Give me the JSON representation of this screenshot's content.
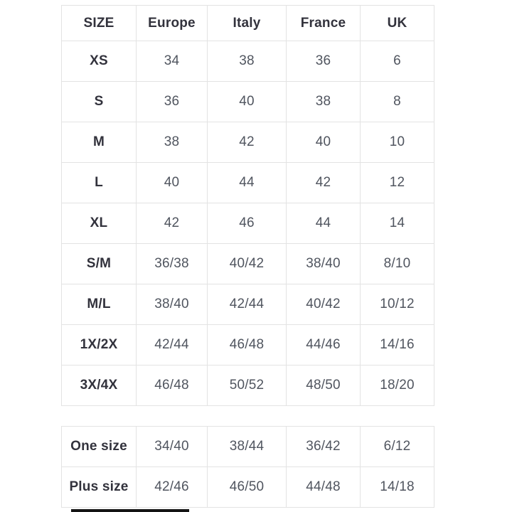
{
  "colors": {
    "background": "#ffffff",
    "border": "#e3e3e3",
    "label_text": "#32323c",
    "value_text": "#50555f",
    "bottom_bar": "#141414"
  },
  "size_chart": {
    "columns": [
      "SIZE",
      "Europe",
      "Italy",
      "France",
      "UK"
    ],
    "rows": [
      {
        "size": "XS",
        "values": [
          "34",
          "38",
          "36",
          "6"
        ]
      },
      {
        "size": "S",
        "values": [
          "36",
          "40",
          "38",
          "8"
        ]
      },
      {
        "size": "M",
        "values": [
          "38",
          "42",
          "40",
          "10"
        ]
      },
      {
        "size": "L",
        "values": [
          "40",
          "44",
          "42",
          "12"
        ]
      },
      {
        "size": "XL",
        "values": [
          "42",
          "46",
          "44",
          "14"
        ]
      },
      {
        "size": "S/M",
        "values": [
          "36/38",
          "40/42",
          "38/40",
          "8/10"
        ]
      },
      {
        "size": "M/L",
        "values": [
          "38/40",
          "42/44",
          "40/42",
          "10/12"
        ]
      },
      {
        "size": "1X/2X",
        "values": [
          "42/44",
          "46/48",
          "44/46",
          "14/16"
        ]
      },
      {
        "size": "3X/4X",
        "values": [
          "46/48",
          "50/52",
          "48/50",
          "18/20"
        ]
      }
    ]
  },
  "special_size_chart": {
    "rows": [
      {
        "size": "One size",
        "values": [
          "34/40",
          "38/44",
          "36/42",
          "6/12"
        ]
      },
      {
        "size": "Plus size",
        "values": [
          "42/46",
          "46/50",
          "44/48",
          "14/18"
        ]
      }
    ]
  }
}
